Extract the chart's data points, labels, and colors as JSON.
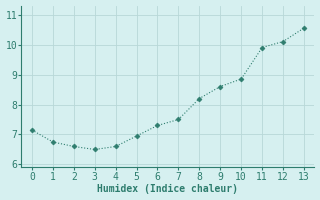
{
  "x": [
    0,
    1,
    2,
    3,
    4,
    5,
    6,
    7,
    8,
    9,
    10,
    11,
    12,
    13
  ],
  "y": [
    7.15,
    6.75,
    6.6,
    6.5,
    6.6,
    6.95,
    7.3,
    7.5,
    8.2,
    8.6,
    8.85,
    9.9,
    10.1,
    10.55
  ],
  "line_color": "#2e7d6e",
  "marker": "D",
  "marker_size": 2.5,
  "bg_color": "#d6f0f0",
  "grid_color": "#b8d8d8",
  "xlabel": "Humidex (Indice chaleur)",
  "xlabel_fontsize": 7,
  "tick_fontsize": 7,
  "xlim": [
    -0.5,
    13.5
  ],
  "ylim": [
    5.9,
    11.3
  ],
  "yticks": [
    6,
    7,
    8,
    9,
    10,
    11
  ],
  "xticks": [
    0,
    1,
    2,
    3,
    4,
    5,
    6,
    7,
    8,
    9,
    10,
    11,
    12,
    13
  ]
}
